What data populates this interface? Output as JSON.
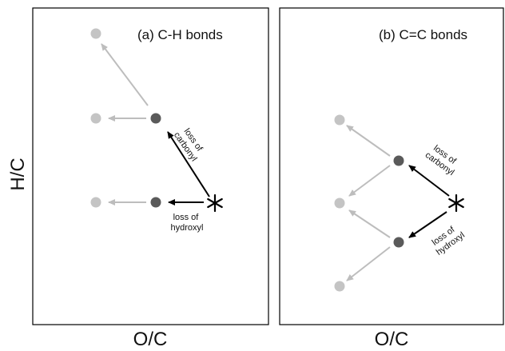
{
  "y_axis_label": "H/C",
  "panels": [
    {
      "id": "a",
      "title": "(a) C-H bonds",
      "x_axis_label": "O/C",
      "annotations": [
        {
          "lines": [
            "loss of",
            "carbonyl"
          ]
        },
        {
          "lines": [
            "loss of",
            "hydroxyl"
          ]
        }
      ]
    },
    {
      "id": "b",
      "title": "(b) C=C bonds",
      "x_axis_label": "O/C",
      "annotations": [
        {
          "lines": [
            "loss of",
            "carbonyl"
          ]
        },
        {
          "lines": [
            "loss of",
            "hydroxyl"
          ]
        }
      ]
    }
  ],
  "colors": {
    "dark_point": "#5a5a5a",
    "light_point": "#c4c4c4",
    "dark_arrow": "#000000",
    "light_arrow": "#bdbdbd",
    "frame": "#000000"
  }
}
